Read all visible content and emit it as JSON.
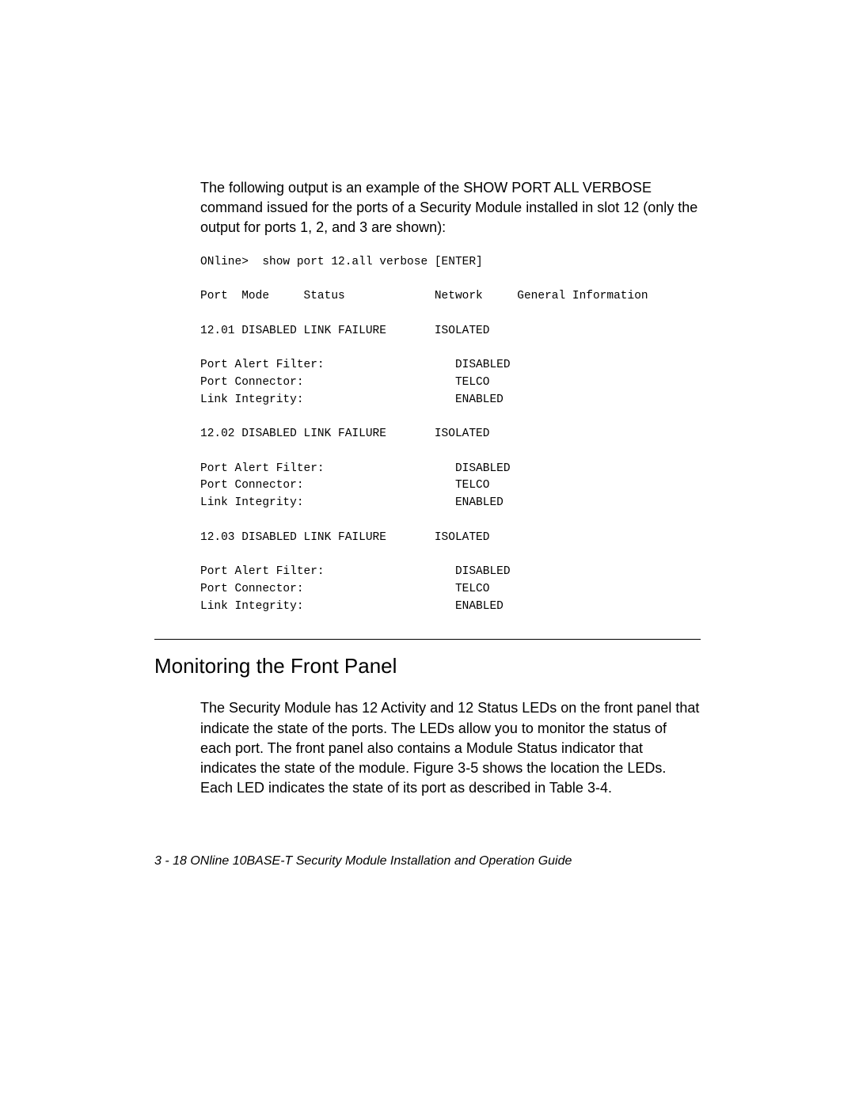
{
  "intro": "The following output is an example of the SHOW PORT ALL VERBOSE command issued for the ports of a Security Module installed in slot 12 (only the output for ports 1, 2, and 3 are shown):",
  "code": "ONline>  show port 12.all verbose [ENTER]\n\nPort  Mode     Status             Network     General Information\n\n12.01 DISABLED LINK FAILURE       ISOLATED\n\nPort Alert Filter:                   DISABLED\nPort Connector:                      TELCO\nLink Integrity:                      ENABLED\n\n12.02 DISABLED LINK FAILURE       ISOLATED\n\nPort Alert Filter:                   DISABLED\nPort Connector:                      TELCO\nLink Integrity:                      ENABLED\n\n12.03 DISABLED LINK FAILURE       ISOLATED\n\nPort Alert Filter:                   DISABLED\nPort Connector:                      TELCO\nLink Integrity:                      ENABLED",
  "heading": "Monitoring the Front Panel",
  "body": "The Security Module has 12 Activity and 12 Status LEDs on the front panel that indicate the state of the ports. The LEDs allow you to monitor the status of each port. The front panel also contains a Module Status indicator that indicates the state of the module. Figure 3-5 shows the location the LEDs. Each LED indicates the state of its port as described in Table 3-4.",
  "footer": "3 - 18  ONline 10BASE-T Security Module Installation and Operation Guide"
}
